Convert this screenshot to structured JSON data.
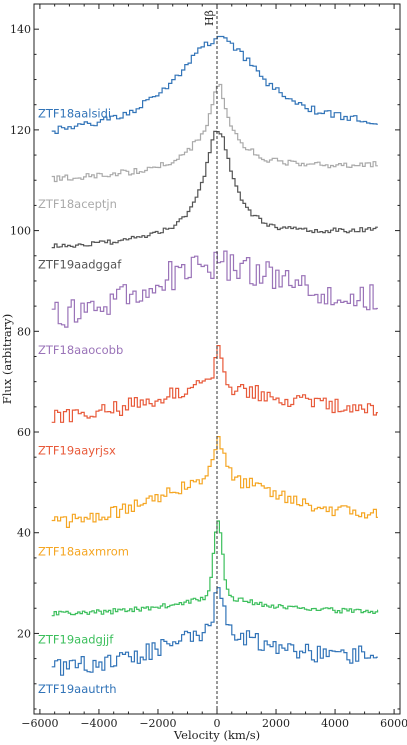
{
  "chart_data": {
    "type": "line",
    "xlabel": "Velocity (km/s)",
    "ylabel": "Flux (arbitrary)",
    "xlim": [
      -6200,
      6200
    ],
    "ylim": [
      4,
      145
    ],
    "xticks": [
      -6000,
      -4000,
      -2000,
      0,
      2000,
      4000,
      6000
    ],
    "yticks": [
      20,
      40,
      60,
      80,
      100,
      120,
      140
    ],
    "vline": {
      "x": 0,
      "label": "Hβ"
    },
    "series": [
      {
        "name": "ZTF18aalsidi",
        "color": "#3274b8",
        "label_y": 122.5,
        "base_start": 118,
        "base_end": 120,
        "peak": 138,
        "width": 1800,
        "sharp": 0,
        "sharp_w": 250,
        "noise": 0.7,
        "step": 110,
        "seed": 1
      },
      {
        "name": "ZTF18aceptjn",
        "color": "#aaaaaa",
        "label_y": 104.5,
        "base_start": 110,
        "base_end": 113,
        "peak": 122,
        "width": 900,
        "sharp": 7,
        "sharp_w": 180,
        "noise": 0.6,
        "step": 90,
        "seed": 2
      },
      {
        "name": "ZTF19aadggaf",
        "color": "#555555",
        "label_y": 92.5,
        "base_start": 96.5,
        "base_end": 100,
        "peak": 116,
        "width": 700,
        "sharp": 4,
        "sharp_w": 250,
        "noise": 0.5,
        "step": 90,
        "seed": 3
      },
      {
        "name": "ZTF18aaocobb",
        "color": "#9a73b8",
        "label_y": 75.5,
        "base_start": 78,
        "base_end": 83,
        "peak": 93,
        "width": 3800,
        "sharp": 0,
        "sharp_w": 250,
        "noise": 3.0,
        "step": 110,
        "seed": 4
      },
      {
        "name": "ZTF19aayrjsx",
        "color": "#e85a3a",
        "label_y": 55.5,
        "base_start": 61,
        "base_end": 63,
        "peak": 69,
        "width": 3000,
        "sharp": 8,
        "sharp_w": 150,
        "noise": 1.6,
        "step": 100,
        "seed": 5
      },
      {
        "name": "ZTF18aaxmrom",
        "color": "#f5a623",
        "label_y": 35.5,
        "base_start": 40,
        "base_end": 42,
        "peak": 51,
        "width": 2600,
        "sharp": 7,
        "sharp_w": 200,
        "noise": 1.3,
        "step": 100,
        "seed": 6
      },
      {
        "name": "ZTF19aadgjjf",
        "color": "#3cbf5c",
        "label_y": 18,
        "base_start": 23.5,
        "base_end": 24,
        "peak": 27,
        "width": 2000,
        "sharp": 15,
        "sharp_w": 150,
        "noise": 0.5,
        "step": 80,
        "seed": 7
      },
      {
        "name": "ZTF19aautrth",
        "color": "#3274b8",
        "label_y": 8.2,
        "base_start": 12,
        "base_end": 15,
        "peak": 20,
        "width": 2200,
        "sharp": 9,
        "sharp_w": 150,
        "noise": 1.8,
        "step": 100,
        "seed": 8
      }
    ]
  }
}
